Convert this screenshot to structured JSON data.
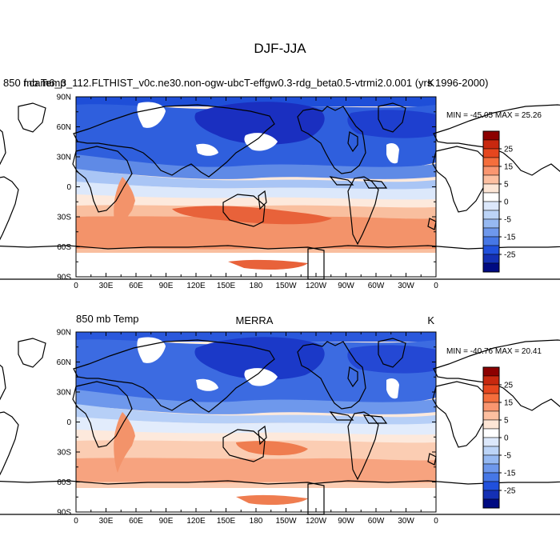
{
  "page_title": "DJF-JJA",
  "panels": [
    {
      "left_label": "850 mb Temp",
      "center_label": "f.cam6_3_112.FLTHIST_v0c.ne30.non-ogw-ubcT-effgw0.3-rdg_beta0.5-vtrmi2.0.001 (yrs 1996-2000)",
      "right_label": "K",
      "stats": "MIN = -45.05 MAX =  25.26"
    },
    {
      "left_label": "850 mb Temp",
      "center_label": "MERRA",
      "right_label": "K",
      "stats": "MIN = -40.76 MAX =  20.41"
    }
  ],
  "axes": {
    "lon_ticks": [
      "0",
      "30E",
      "60E",
      "90E",
      "120E",
      "150E",
      "180",
      "150W",
      "120W",
      "90W",
      "60W",
      "30W",
      "0"
    ],
    "lat_ticks": [
      "90N",
      "60N",
      "30N",
      "0",
      "30S",
      "60S",
      "90S"
    ]
  },
  "colorbar": {
    "labels": [
      "25",
      "15",
      "5",
      "0",
      "-5",
      "-15",
      "-25"
    ],
    "colors": [
      "#8c0000",
      "#c8280f",
      "#e6461e",
      "#f56e3c",
      "#fa9670",
      "#fdbfa0",
      "#fde6d6",
      "#ffffff",
      "#dce8fb",
      "#bcd4f7",
      "#96b9f2",
      "#6e98ec",
      "#4677e6",
      "#2050dc",
      "#1430b4",
      "#000a82"
    ]
  },
  "palette": {
    "deep_blue": "#1e4ed8",
    "mid_blue": "#5f8ae6",
    "light_blue": "#c8dafa",
    "neutral": "#fde9dc",
    "light_orange": "#f9bf9f",
    "mid_orange": "#f3936a",
    "dark_orange": "#e8623a",
    "missing": "#ffffff",
    "coast": "#000000"
  }
}
